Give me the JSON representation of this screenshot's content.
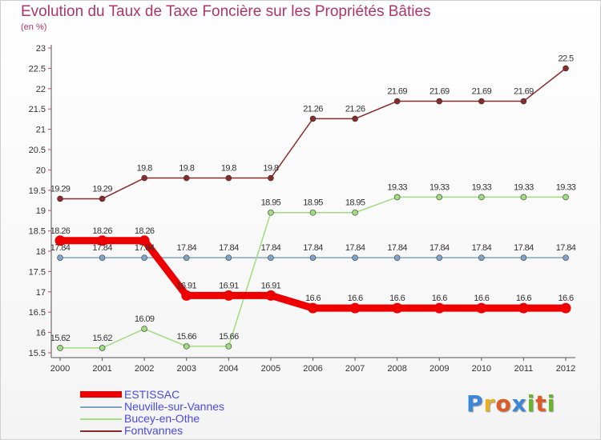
{
  "header": {
    "title": "Evolution du Taux de Taxe Foncière sur les Propriétés Bâties",
    "unit": "(en %)"
  },
  "logo": {
    "letters": [
      "P",
      "r",
      "o",
      "x",
      "i",
      "t",
      "i"
    ],
    "colors": [
      "#3b86d6",
      "#e8b020",
      "#e05a28",
      "#3b86d6",
      "#6ab42a",
      "#e05a28",
      "#6ab42a"
    ]
  },
  "chart_data": {
    "type": "line",
    "title": "Evolution du Taux de Taxe Foncière sur les Propriétés Bâties",
    "ylabel": "(en %)",
    "xlabel": "",
    "categories": [
      "2000",
      "2001",
      "2002",
      "2003",
      "2004",
      "2005",
      "2006",
      "2007",
      "2008",
      "2009",
      "2010",
      "2011",
      "2012"
    ],
    "ylim": [
      15.5,
      23
    ],
    "yticks": [
      "15.5",
      "16",
      "16.5",
      "17",
      "17.5",
      "18",
      "18.5",
      "19",
      "19.5",
      "20",
      "20.5",
      "21",
      "21.5",
      "22",
      "22.5",
      "23"
    ],
    "grid": false,
    "legend_position": "bottom-left",
    "series": [
      {
        "name": "ESTISSAC",
        "color": "#ee0000",
        "values": [
          18.26,
          18.26,
          18.26,
          16.91,
          16.91,
          16.91,
          16.6,
          16.6,
          16.6,
          16.6,
          16.6,
          16.6,
          16.6
        ],
        "labels": [
          "18.26",
          "18.26",
          "18.26",
          "16.91",
          "16.91",
          "16.91",
          "16.6",
          "16.6",
          "16.6",
          "16.6",
          "16.6",
          "16.6",
          "16.6"
        ]
      },
      {
        "name": "Neuville-sur-Vannes",
        "color": "#7ea4c8",
        "values": [
          17.84,
          17.84,
          17.84,
          17.84,
          17.84,
          17.84,
          17.84,
          17.84,
          17.84,
          17.84,
          17.84,
          17.84,
          17.84
        ],
        "labels": [
          "17.84",
          "17.84",
          "17.84",
          "17.84",
          "17.84",
          "17.84",
          "17.84",
          "17.84",
          "17.84",
          "17.84",
          "17.84",
          "17.84",
          "17.84"
        ]
      },
      {
        "name": "Bucey-en-Othe",
        "color": "#a0dc80",
        "values": [
          15.62,
          15.62,
          16.09,
          15.66,
          15.66,
          18.95,
          18.95,
          18.95,
          19.33,
          19.33,
          19.33,
          19.33,
          19.33
        ],
        "labels": [
          "15.62",
          "15.62",
          "16.09",
          "15.66",
          "15.66",
          "18.95",
          "18.95",
          "18.95",
          "19.33",
          "19.33",
          "19.33",
          "19.33",
          "19.33"
        ]
      },
      {
        "name": "Fontvannes",
        "color": "#8a2a2a",
        "values": [
          19.29,
          19.29,
          19.8,
          19.8,
          19.8,
          19.8,
          21.26,
          21.26,
          21.69,
          21.69,
          21.69,
          21.69,
          22.5
        ],
        "labels": [
          "19.29",
          "19.29",
          "19.8",
          "19.8",
          "19.8",
          "19.8",
          "21.26",
          "21.26",
          "21.69",
          "21.69",
          "21.69",
          "21.69",
          "22.5"
        ]
      }
    ]
  }
}
